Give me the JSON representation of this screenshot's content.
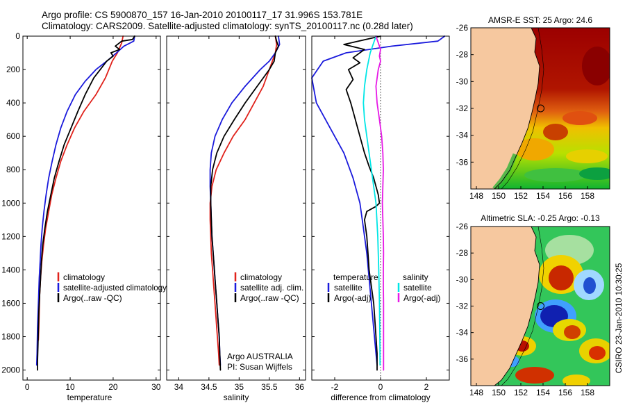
{
  "figure": {
    "title_line1": "Argo profile: CS 5900870_157 16-Jan-2010 20100117_17 31.996S 153.781E",
    "title_line2": "Climatology: CARS2009. Satellite-adjusted climatology: synTS_20100117.nc (0.28d later)",
    "side_stamp": "CSIRO 23-Jan-2010 10:30:25",
    "colors": {
      "climatology": "#e0221b",
      "satellite": "#1a1adc",
      "argo": "#000000",
      "satellite_diff_salinity": "#00e6e6",
      "argo_diff_salinity": "#e619e6",
      "land": "#f6c89f",
      "axis": "#000000"
    }
  },
  "chart_data": [
    {
      "id": "temperature",
      "type": "line",
      "xlabel": "temperature",
      "xlim": [
        -1,
        31
      ],
      "ylim": [
        2060,
        0
      ],
      "x_ticks": [
        0,
        10,
        20,
        30
      ],
      "y_ticks": [
        0,
        200,
        400,
        600,
        800,
        1000,
        1200,
        1400,
        1600,
        1800,
        2000
      ],
      "legend": [
        "climatology",
        "satellite-adjusted climatology",
        "Argo(..raw -QC)"
      ],
      "series": [
        {
          "name": "climatology",
          "color_key": "climatology",
          "points": [
            [
              22.3,
              0
            ],
            [
              22.0,
              40
            ],
            [
              21.0,
              100
            ],
            [
              19.8,
              150
            ],
            [
              18.2,
              250
            ],
            [
              16.0,
              350
            ],
            [
              13.2,
              450
            ],
            [
              11.0,
              550
            ],
            [
              9.3,
              650
            ],
            [
              7.8,
              750
            ],
            [
              6.7,
              850
            ],
            [
              5.7,
              950
            ],
            [
              5.0,
              1050
            ],
            [
              4.3,
              1150
            ],
            [
              3.8,
              1250
            ],
            [
              3.4,
              1350
            ],
            [
              3.1,
              1450
            ],
            [
              2.9,
              1550
            ],
            [
              2.8,
              1650
            ],
            [
              2.7,
              1750
            ],
            [
              2.6,
              1820
            ]
          ]
        },
        {
          "name": "satellite-adjusted climatology",
          "color_key": "satellite",
          "points": [
            [
              25.0,
              0
            ],
            [
              24.8,
              30
            ],
            [
              22.5,
              60
            ],
            [
              20.8,
              100
            ],
            [
              18.5,
              150
            ],
            [
              16.0,
              200
            ],
            [
              13.5,
              270
            ],
            [
              11.2,
              350
            ],
            [
              9.3,
              450
            ],
            [
              7.8,
              550
            ],
            [
              6.7,
              650
            ],
            [
              5.8,
              750
            ],
            [
              5.0,
              850
            ],
            [
              4.4,
              950
            ],
            [
              3.9,
              1050
            ],
            [
              3.5,
              1150
            ],
            [
              3.2,
              1250
            ],
            [
              3.0,
              1350
            ],
            [
              2.8,
              1450
            ],
            [
              2.6,
              1600
            ],
            [
              2.4,
              1750
            ],
            [
              2.3,
              1900
            ],
            [
              2.2,
              1970
            ]
          ]
        },
        {
          "name": "Argo(..raw -QC)",
          "color_key": "argo",
          "points": [
            [
              25.0,
              0
            ],
            [
              24.5,
              20
            ],
            [
              22.0,
              30
            ],
            [
              20.5,
              60
            ],
            [
              21.5,
              80
            ],
            [
              19.5,
              100
            ],
            [
              20.0,
              120
            ],
            [
              18.5,
              150
            ],
            [
              17.0,
              200
            ],
            [
              15.5,
              250
            ],
            [
              13.5,
              350
            ],
            [
              11.8,
              450
            ],
            [
              10.2,
              550
            ],
            [
              8.6,
              650
            ],
            [
              7.4,
              750
            ],
            [
              6.3,
              850
            ],
            [
              5.5,
              950
            ],
            [
              4.7,
              1050
            ],
            [
              4.1,
              1150
            ],
            [
              3.6,
              1250
            ],
            [
              3.3,
              1350
            ],
            [
              3.1,
              1450
            ],
            [
              2.9,
              1550
            ],
            [
              2.7,
              1650
            ],
            [
              2.6,
              1750
            ],
            [
              2.5,
              1850
            ],
            [
              2.4,
              1950
            ],
            [
              2.4,
              2000
            ]
          ]
        }
      ]
    },
    {
      "id": "salinity",
      "type": "line",
      "xlabel": "salinity",
      "xlim": [
        33.8,
        36.1
      ],
      "ylim": [
        2060,
        0
      ],
      "x_ticks": [
        34,
        34.5,
        35,
        35.5,
        36
      ],
      "legend": [
        "climatology",
        "satellite adj. clim.",
        "Argo(..raw -QC)"
      ],
      "annotation_line1": "Argo AUSTRALIA",
      "annotation_line2": "PI: Susan Wijffels",
      "series": [
        {
          "name": "climatology",
          "color_key": "climatology",
          "points": [
            [
              35.6,
              0
            ],
            [
              35.62,
              50
            ],
            [
              35.6,
              100
            ],
            [
              35.55,
              150
            ],
            [
              35.5,
              200
            ],
            [
              35.4,
              300
            ],
            [
              35.25,
              400
            ],
            [
              35.1,
              500
            ],
            [
              34.9,
              600
            ],
            [
              34.75,
              700
            ],
            [
              34.62,
              800
            ],
            [
              34.55,
              900
            ],
            [
              34.52,
              1000
            ],
            [
              34.52,
              1100
            ],
            [
              34.53,
              1200
            ],
            [
              34.54,
              1300
            ],
            [
              34.56,
              1400
            ],
            [
              34.58,
              1500
            ],
            [
              34.6,
              1600
            ],
            [
              34.62,
              1700
            ],
            [
              34.64,
              1800
            ],
            [
              34.66,
              1900
            ],
            [
              34.67,
              1970
            ]
          ]
        },
        {
          "name": "satellite adj. clim.",
          "color_key": "satellite",
          "points": [
            [
              35.65,
              0
            ],
            [
              35.67,
              50
            ],
            [
              35.6,
              100
            ],
            [
              35.5,
              150
            ],
            [
              35.35,
              200
            ],
            [
              35.1,
              300
            ],
            [
              34.88,
              400
            ],
            [
              34.72,
              500
            ],
            [
              34.6,
              600
            ],
            [
              34.54,
              700
            ],
            [
              34.52,
              800
            ],
            [
              34.52,
              900
            ],
            [
              34.53,
              1000
            ],
            [
              34.54,
              1100
            ],
            [
              34.55,
              1200
            ],
            [
              34.57,
              1300
            ],
            [
              34.59,
              1400
            ],
            [
              34.61,
              1500
            ],
            [
              34.63,
              1600
            ],
            [
              34.65,
              1700
            ],
            [
              34.67,
              1800
            ],
            [
              34.68,
              1900
            ],
            [
              34.69,
              1970
            ]
          ]
        },
        {
          "name": "Argo(..raw -QC)",
          "color_key": "argo",
          "points": [
            [
              35.6,
              0
            ],
            [
              35.62,
              30
            ],
            [
              35.65,
              60
            ],
            [
              35.6,
              100
            ],
            [
              35.58,
              150
            ],
            [
              35.5,
              200
            ],
            [
              35.3,
              300
            ],
            [
              35.1,
              400
            ],
            [
              34.92,
              500
            ],
            [
              34.75,
              600
            ],
            [
              34.63,
              700
            ],
            [
              34.56,
              800
            ],
            [
              34.53,
              900
            ],
            [
              34.53,
              1000
            ],
            [
              34.54,
              1100
            ],
            [
              34.55,
              1200
            ],
            [
              34.57,
              1300
            ],
            [
              34.59,
              1400
            ],
            [
              34.61,
              1500
            ],
            [
              34.63,
              1600
            ],
            [
              34.65,
              1700
            ],
            [
              34.67,
              1800
            ],
            [
              34.68,
              1900
            ],
            [
              34.69,
              2000
            ]
          ]
        }
      ]
    },
    {
      "id": "difference",
      "type": "line",
      "xlabel": "difference from climatology",
      "xlim": [
        -3,
        3
      ],
      "ylim": [
        2060,
        0
      ],
      "x_ticks": [
        -2,
        0,
        2
      ],
      "legend_left_title": "temperature",
      "legend_right_title": "salinity",
      "legend": [
        "satellite",
        "Argo(-adj)",
        "satellite",
        "Argo(-adj)"
      ],
      "series": [
        {
          "name": "satellite",
          "group": "temperature",
          "color_key": "satellite",
          "points": [
            [
              2.8,
              0
            ],
            [
              2.5,
              30
            ],
            [
              0.5,
              60
            ],
            [
              -1.5,
              100
            ],
            [
              -2.5,
              150
            ],
            [
              -3.0,
              250
            ],
            [
              -2.8,
              400
            ],
            [
              -2.2,
              550
            ],
            [
              -1.6,
              700
            ],
            [
              -1.2,
              850
            ],
            [
              -0.9,
              1000
            ],
            [
              -0.75,
              1150
            ],
            [
              -0.6,
              1300
            ],
            [
              -0.5,
              1450
            ],
            [
              -0.4,
              1600
            ],
            [
              -0.3,
              1750
            ],
            [
              -0.2,
              1900
            ],
            [
              -0.15,
              1970
            ]
          ]
        },
        {
          "name": "Argo(-adj)",
          "group": "temperature",
          "color_key": "argo",
          "points": [
            [
              0.0,
              0
            ],
            [
              -1.6,
              50
            ],
            [
              -0.7,
              80
            ],
            [
              -1.2,
              130
            ],
            [
              -0.9,
              160
            ],
            [
              -1.4,
              200
            ],
            [
              -1.2,
              260
            ],
            [
              -1.5,
              320
            ],
            [
              -1.3,
              400
            ],
            [
              -1.1,
              500
            ],
            [
              -0.9,
              600
            ],
            [
              -0.7,
              700
            ],
            [
              -0.5,
              780
            ],
            [
              -0.3,
              850
            ],
            [
              -0.2,
              900
            ],
            [
              -0.1,
              950
            ],
            [
              -0.05,
              1000
            ],
            [
              -0.2,
              1020
            ],
            [
              -0.6,
              1050
            ],
            [
              -0.7,
              1100
            ],
            [
              -0.6,
              1200
            ],
            [
              -0.55,
              1300
            ],
            [
              -0.5,
              1400
            ],
            [
              -0.4,
              1500
            ],
            [
              -0.3,
              1600
            ],
            [
              -0.25,
              1700
            ],
            [
              -0.2,
              1800
            ],
            [
              -0.15,
              1900
            ],
            [
              -0.15,
              2000
            ]
          ]
        },
        {
          "name": "satellite",
          "group": "salinity",
          "color_key": "satellite_diff_salinity",
          "points": [
            [
              -0.2,
              0
            ],
            [
              -0.3,
              40
            ],
            [
              -0.45,
              100
            ],
            [
              -0.6,
              200
            ],
            [
              -0.7,
              300
            ],
            [
              -0.75,
              400
            ],
            [
              -0.7,
              500
            ],
            [
              -0.6,
              600
            ],
            [
              -0.5,
              700
            ],
            [
              -0.4,
              800
            ],
            [
              -0.3,
              900
            ],
            [
              -0.2,
              1000
            ],
            [
              -0.12,
              1200
            ],
            [
              -0.08,
              1400
            ],
            [
              -0.05,
              1600
            ],
            [
              -0.03,
              1800
            ],
            [
              -0.02,
              1970
            ]
          ]
        },
        {
          "name": "Argo(-adj)",
          "group": "salinity",
          "color_key": "argo_diff_salinity",
          "points": [
            [
              -0.2,
              0
            ],
            [
              -0.1,
              40
            ],
            [
              0.0,
              80
            ],
            [
              -0.05,
              120
            ],
            [
              0.0,
              150
            ],
            [
              -0.1,
              200
            ],
            [
              -0.2,
              300
            ],
            [
              -0.15,
              400
            ],
            [
              -0.05,
              500
            ],
            [
              0.05,
              600
            ],
            [
              0.1,
              700
            ],
            [
              0.12,
              800
            ],
            [
              0.1,
              900
            ],
            [
              0.08,
              1000
            ],
            [
              0.1,
              1100
            ],
            [
              0.12,
              1200
            ],
            [
              0.13,
              1300
            ],
            [
              0.12,
              1400
            ],
            [
              0.12,
              1500
            ],
            [
              0.13,
              1600
            ],
            [
              0.13,
              1700
            ],
            [
              0.13,
              1800
            ],
            [
              0.13,
              1900
            ],
            [
              0.13,
              2000
            ]
          ]
        }
      ]
    },
    {
      "id": "sst_map",
      "type": "heatmap",
      "title": "AMSR-E SST: 25 Argo: 24.6",
      "xlim": [
        147.5,
        160
      ],
      "ylim": [
        -38,
        -26
      ],
      "x_ticks": [
        148,
        150,
        152,
        154,
        156,
        158
      ],
      "y_ticks": [
        -26,
        -28,
        -30,
        -32,
        -34,
        -36
      ],
      "argo_position": [
        153.78,
        -32.0
      ]
    },
    {
      "id": "sla_map",
      "type": "heatmap",
      "title": "Altimetric SLA: -0.25 Argo: -0.13",
      "xlim": [
        147.5,
        160
      ],
      "ylim": [
        -38,
        -26
      ],
      "x_ticks": [
        148,
        150,
        152,
        154,
        156,
        158
      ],
      "y_ticks": [
        -26,
        -28,
        -30,
        -32,
        -34,
        -36
      ],
      "argo_position": [
        153.78,
        -32.0
      ]
    }
  ]
}
